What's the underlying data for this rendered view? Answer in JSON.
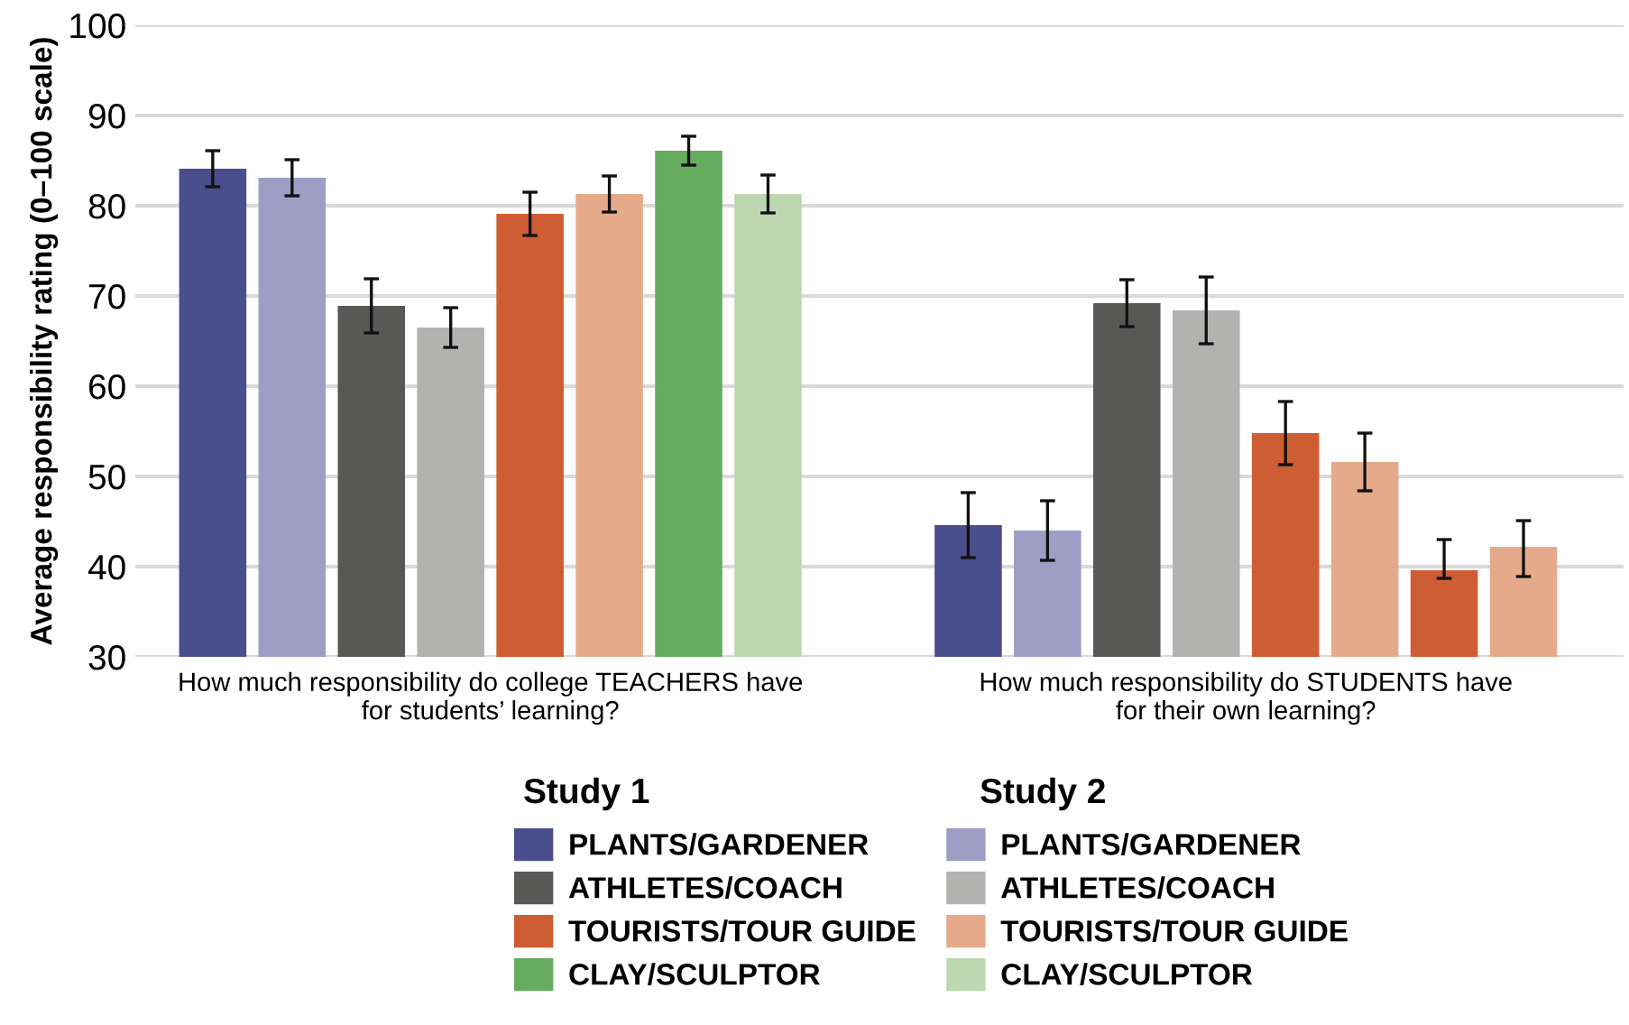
{
  "chart_data": {
    "type": "bar",
    "ylabel": "Average responsibility rating (0–100 scale)",
    "categories": [
      "How much responsibility do college TEACHERS have\nfor students’ learning?",
      "How much responsibility do STUDENTS have\nfor their own learning?"
    ],
    "series": [
      {
        "name": "PLANTS/GARDENER",
        "color": "#4a4e8c",
        "colors": [
          "#4a4e8c",
          "#4a4e8c"
        ],
        "values": [
          84.1,
          44.6
        ],
        "errors": [
          2,
          3.6
        ]
      },
      {
        "name": "PLANTS/GARDENER",
        "color": "#9d9dc5",
        "colors": [
          "#9d9dc5",
          "#9d9dc5"
        ],
        "values": [
          83.1,
          44.0
        ],
        "errors": [
          2,
          3.3
        ]
      },
      {
        "name": "ATHLETES/COACH",
        "color": "#585856",
        "colors": [
          "#585856",
          "#585856"
        ],
        "values": [
          68.9,
          69.2
        ],
        "errors": [
          3,
          2.6
        ]
      },
      {
        "name": "ATHLETES/COACH",
        "color": "#b2b2b0",
        "colors": [
          "#b2b2b0",
          "#b2b2b0"
        ],
        "values": [
          66.5,
          68.4
        ],
        "errors": [
          2.2,
          3.7
        ]
      },
      {
        "name": "TOURISTS/TOUR GUIDE",
        "color": "#cf5d34",
        "colors": [
          "#cf5d34",
          "#cf5d34"
        ],
        "values": [
          79.1,
          54.8
        ],
        "errors": [
          2.4,
          3.5
        ]
      },
      {
        "name": "TOURISTS/TOUR GUIDE",
        "color": "#e5aa8a",
        "colors": [
          "#e5aa8a",
          "#e5aa8a"
        ],
        "values": [
          81.3,
          51.6
        ],
        "errors": [
          2,
          3.2
        ]
      },
      {
        "name": "CLAY/SCULPTOR",
        "color": "#67ab61",
        "colors": [
          "#67ab61",
          "#cf5d34"
        ],
        "values": [
          86.1,
          39.6
        ],
        "errors": [
          1.6,
          [
            38.7,
            43.0
          ]
        ]
      },
      {
        "name": "CLAY/SCULPTOR",
        "color": "#bcd7b0",
        "colors": [
          "#bcd7b0",
          "#e5aa8a"
        ],
        "values": [
          81.3,
          42.2
        ],
        "errors": [
          2.1,
          [
            38.9,
            45.1
          ]
        ]
      }
    ],
    "ylim": [
      30,
      100
    ],
    "yticks": [
      30,
      40,
      50,
      60,
      70,
      80,
      90,
      100
    ],
    "grid": "y",
    "legend": "bottom",
    "annotations": [
      "Study 1",
      "Study 2"
    ]
  }
}
